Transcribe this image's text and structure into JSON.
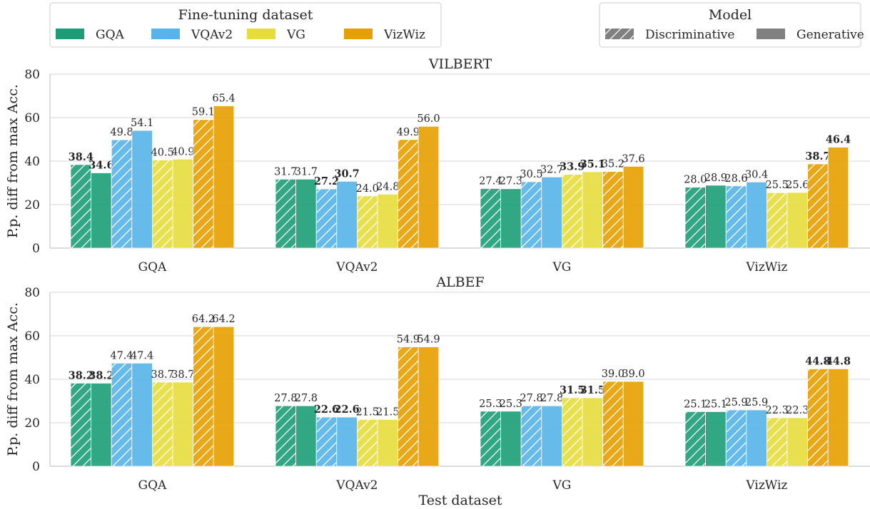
{
  "chart_data": {
    "type": "bar",
    "xlabel": "Test dataset",
    "ylabel": "P.p. diff from max Acc.",
    "ylim": [
      0,
      80
    ],
    "yticks": [
      0,
      20,
      40,
      60,
      80
    ],
    "grid": true,
    "test_datasets": [
      "GQA",
      "VQAv2",
      "VG",
      "VizWiz"
    ],
    "finetuning_legend": {
      "title": "Fine-tuning dataset",
      "placement": "top-left",
      "items": [
        {
          "name": "GQA",
          "color": "#1b9e77"
        },
        {
          "name": "VQAv2",
          "color": "#56b4e9"
        },
        {
          "name": "VG",
          "color": "#e6dd3b"
        },
        {
          "name": "VizWiz",
          "color": "#e69f00"
        }
      ]
    },
    "model_legend": {
      "title": "Model",
      "placement": "top-right",
      "items": [
        {
          "name": "Discriminative",
          "hatch": true
        },
        {
          "name": "Generative",
          "hatch": false
        }
      ]
    },
    "panels": [
      {
        "title": "VILBERT",
        "groups": [
          {
            "test": "GQA",
            "bars": [
              {
                "ft": "GQA",
                "model": "Discriminative",
                "value": 38.4,
                "label": "38.4",
                "bold": true
              },
              {
                "ft": "GQA",
                "model": "Generative",
                "value": 34.6,
                "label": "34.6",
                "bold": true
              },
              {
                "ft": "VQAv2",
                "model": "Discriminative",
                "value": 49.8,
                "label": "49.8",
                "bold": false
              },
              {
                "ft": "VQAv2",
                "model": "Generative",
                "value": 54.1,
                "label": "54.1",
                "bold": false
              },
              {
                "ft": "VG",
                "model": "Discriminative",
                "value": 40.5,
                "label": "40.5",
                "bold": false
              },
              {
                "ft": "VG",
                "model": "Generative",
                "value": 40.9,
                "label": "40.9",
                "bold": false
              },
              {
                "ft": "VizWiz",
                "model": "Discriminative",
                "value": 59.1,
                "label": "59.1",
                "bold": false
              },
              {
                "ft": "VizWiz",
                "model": "Generative",
                "value": 65.4,
                "label": "65.4",
                "bold": false
              }
            ]
          },
          {
            "test": "VQAv2",
            "bars": [
              {
                "ft": "GQA",
                "model": "Discriminative",
                "value": 31.7,
                "label": "31.7",
                "bold": false
              },
              {
                "ft": "GQA",
                "model": "Generative",
                "value": 31.7,
                "label": "31.7",
                "bold": false
              },
              {
                "ft": "VQAv2",
                "model": "Discriminative",
                "value": 27.2,
                "label": "27.2",
                "bold": true
              },
              {
                "ft": "VQAv2",
                "model": "Generative",
                "value": 30.7,
                "label": "30.7",
                "bold": true
              },
              {
                "ft": "VG",
                "model": "Discriminative",
                "value": 24.0,
                "label": "24.0",
                "bold": false
              },
              {
                "ft": "VG",
                "model": "Generative",
                "value": 24.8,
                "label": "24.8",
                "bold": false
              },
              {
                "ft": "VizWiz",
                "model": "Discriminative",
                "value": 49.9,
                "label": "49.9",
                "bold": false
              },
              {
                "ft": "VizWiz",
                "model": "Generative",
                "value": 56.0,
                "label": "56.0",
                "bold": false
              }
            ]
          },
          {
            "test": "VG",
            "bars": [
              {
                "ft": "GQA",
                "model": "Discriminative",
                "value": 27.4,
                "label": "27.4",
                "bold": false
              },
              {
                "ft": "GQA",
                "model": "Generative",
                "value": 27.3,
                "label": "27.3",
                "bold": false
              },
              {
                "ft": "VQAv2",
                "model": "Discriminative",
                "value": 30.5,
                "label": "30.5",
                "bold": false
              },
              {
                "ft": "VQAv2",
                "model": "Generative",
                "value": 32.7,
                "label": "32.7",
                "bold": false
              },
              {
                "ft": "VG",
                "model": "Discriminative",
                "value": 33.9,
                "label": "33.9",
                "bold": true
              },
              {
                "ft": "VG",
                "model": "Generative",
                "value": 35.1,
                "label": "35.1",
                "bold": true
              },
              {
                "ft": "VizWiz",
                "model": "Discriminative",
                "value": 35.2,
                "label": "35.2",
                "bold": false
              },
              {
                "ft": "VizWiz",
                "model": "Generative",
                "value": 37.6,
                "label": "37.6",
                "bold": false
              }
            ]
          },
          {
            "test": "VizWiz",
            "bars": [
              {
                "ft": "GQA",
                "model": "Discriminative",
                "value": 28.0,
                "label": "28.0",
                "bold": false
              },
              {
                "ft": "GQA",
                "model": "Generative",
                "value": 28.9,
                "label": "28.9",
                "bold": false
              },
              {
                "ft": "VQAv2",
                "model": "Discriminative",
                "value": 28.6,
                "label": "28.6",
                "bold": false
              },
              {
                "ft": "VQAv2",
                "model": "Generative",
                "value": 30.4,
                "label": "30.4",
                "bold": false
              },
              {
                "ft": "VG",
                "model": "Discriminative",
                "value": 25.5,
                "label": "25.5",
                "bold": false
              },
              {
                "ft": "VG",
                "model": "Generative",
                "value": 25.6,
                "label": "25.6",
                "bold": false
              },
              {
                "ft": "VizWiz",
                "model": "Discriminative",
                "value": 38.7,
                "label": "38.7",
                "bold": true
              },
              {
                "ft": "VizWiz",
                "model": "Generative",
                "value": 46.4,
                "label": "46.4",
                "bold": true
              }
            ]
          }
        ]
      },
      {
        "title": "ALBEF",
        "groups": [
          {
            "test": "GQA",
            "bars": [
              {
                "ft": "GQA",
                "model": "Discriminative",
                "value": 38.2,
                "label": "38.2",
                "bold": true
              },
              {
                "ft": "GQA",
                "model": "Generative",
                "value": 38.2,
                "label": "38.2",
                "bold": true
              },
              {
                "ft": "VQAv2",
                "model": "Discriminative",
                "value": 47.4,
                "label": "47.4",
                "bold": false
              },
              {
                "ft": "VQAv2",
                "model": "Generative",
                "value": 47.4,
                "label": "47.4",
                "bold": false
              },
              {
                "ft": "VG",
                "model": "Discriminative",
                "value": 38.7,
                "label": "38.7",
                "bold": false
              },
              {
                "ft": "VG",
                "model": "Generative",
                "value": 38.7,
                "label": "38.7",
                "bold": false
              },
              {
                "ft": "VizWiz",
                "model": "Discriminative",
                "value": 64.2,
                "label": "64.2",
                "bold": false
              },
              {
                "ft": "VizWiz",
                "model": "Generative",
                "value": 64.2,
                "label": "64.2",
                "bold": false
              }
            ]
          },
          {
            "test": "VQAv2",
            "bars": [
              {
                "ft": "GQA",
                "model": "Discriminative",
                "value": 27.8,
                "label": "27.8",
                "bold": false
              },
              {
                "ft": "GQA",
                "model": "Generative",
                "value": 27.8,
                "label": "27.8",
                "bold": false
              },
              {
                "ft": "VQAv2",
                "model": "Discriminative",
                "value": 22.6,
                "label": "22.6",
                "bold": true
              },
              {
                "ft": "VQAv2",
                "model": "Generative",
                "value": 22.6,
                "label": "22.6",
                "bold": true
              },
              {
                "ft": "VG",
                "model": "Discriminative",
                "value": 21.5,
                "label": "21.5",
                "bold": false
              },
              {
                "ft": "VG",
                "model": "Generative",
                "value": 21.5,
                "label": "21.5",
                "bold": false
              },
              {
                "ft": "VizWiz",
                "model": "Discriminative",
                "value": 54.9,
                "label": "54.9",
                "bold": false
              },
              {
                "ft": "VizWiz",
                "model": "Generative",
                "value": 54.9,
                "label": "54.9",
                "bold": false
              }
            ]
          },
          {
            "test": "VG",
            "bars": [
              {
                "ft": "GQA",
                "model": "Discriminative",
                "value": 25.3,
                "label": "25.3",
                "bold": false
              },
              {
                "ft": "GQA",
                "model": "Generative",
                "value": 25.3,
                "label": "25.3",
                "bold": false
              },
              {
                "ft": "VQAv2",
                "model": "Discriminative",
                "value": 27.8,
                "label": "27.8",
                "bold": false
              },
              {
                "ft": "VQAv2",
                "model": "Generative",
                "value": 27.8,
                "label": "27.8",
                "bold": false
              },
              {
                "ft": "VG",
                "model": "Discriminative",
                "value": 31.5,
                "label": "31.5",
                "bold": true
              },
              {
                "ft": "VG",
                "model": "Generative",
                "value": 31.5,
                "label": "31.5",
                "bold": true
              },
              {
                "ft": "VizWiz",
                "model": "Discriminative",
                "value": 39.0,
                "label": "39.0",
                "bold": false
              },
              {
                "ft": "VizWiz",
                "model": "Generative",
                "value": 39.0,
                "label": "39.0",
                "bold": false
              }
            ]
          },
          {
            "test": "VizWiz",
            "bars": [
              {
                "ft": "GQA",
                "model": "Discriminative",
                "value": 25.1,
                "label": "25.1",
                "bold": false
              },
              {
                "ft": "GQA",
                "model": "Generative",
                "value": 25.1,
                "label": "25.1",
                "bold": false
              },
              {
                "ft": "VQAv2",
                "model": "Discriminative",
                "value": 25.9,
                "label": "25.9",
                "bold": false
              },
              {
                "ft": "VQAv2",
                "model": "Generative",
                "value": 25.9,
                "label": "25.9",
                "bold": false
              },
              {
                "ft": "VG",
                "model": "Discriminative",
                "value": 22.3,
                "label": "22.3",
                "bold": false
              },
              {
                "ft": "VG",
                "model": "Generative",
                "value": 22.3,
                "label": "22.3",
                "bold": false
              },
              {
                "ft": "VizWiz",
                "model": "Discriminative",
                "value": 44.8,
                "label": "44.8",
                "bold": true
              },
              {
                "ft": "VizWiz",
                "model": "Generative",
                "value": 44.8,
                "label": "44.8",
                "bold": true
              }
            ]
          }
        ]
      }
    ]
  }
}
